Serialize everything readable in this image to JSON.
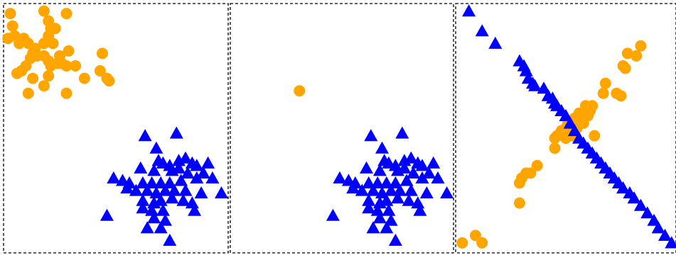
{
  "colors": {
    "circle": "#FFA500",
    "triangle": "#0000FF",
    "border": "#000000",
    "background": "#FFFFFF"
  },
  "chart_data": [
    {
      "type": "scatter",
      "panel": 1,
      "xlim": [
        0,
        1
      ],
      "ylim": [
        0,
        1
      ],
      "series": [
        {
          "marker": "circle",
          "color": "#FFA500",
          "points": [
            [
              0.03,
              0.96
            ],
            [
              0.18,
              0.97
            ],
            [
              0.28,
              0.96
            ],
            [
              0.2,
              0.93
            ],
            [
              0.04,
              0.91
            ],
            [
              0.05,
              0.87
            ],
            [
              0.09,
              0.86
            ],
            [
              0.02,
              0.86
            ],
            [
              0.07,
              0.84
            ],
            [
              0.11,
              0.84
            ],
            [
              0.21,
              0.9
            ],
            [
              0.23,
              0.9
            ],
            [
              0.2,
              0.87
            ],
            [
              0.18,
              0.84
            ],
            [
              0.22,
              0.84
            ],
            [
              0.14,
              0.82
            ],
            [
              0.13,
              0.8
            ],
            [
              0.15,
              0.79
            ],
            [
              0.18,
              0.79
            ],
            [
              0.12,
              0.78
            ],
            [
              0.25,
              0.79
            ],
            [
              0.29,
              0.81
            ],
            [
              0.44,
              0.8
            ],
            [
              0.2,
              0.77
            ],
            [
              0.21,
              0.75
            ],
            [
              0.24,
              0.76
            ],
            [
              0.26,
              0.76
            ],
            [
              0.28,
              0.75
            ],
            [
              0.32,
              0.75
            ],
            [
              0.1,
              0.75
            ],
            [
              0.08,
              0.73
            ],
            [
              0.06,
              0.72
            ],
            [
              0.13,
              0.7
            ],
            [
              0.2,
              0.71
            ],
            [
              0.36,
              0.7
            ],
            [
              0.43,
              0.73
            ],
            [
              0.46,
              0.7
            ],
            [
              0.47,
              0.69
            ],
            [
              0.18,
              0.67
            ],
            [
              0.11,
              0.64
            ],
            [
              0.28,
              0.64
            ]
          ]
        },
        {
          "marker": "triangle",
          "color": "#0000FF",
          "points": [
            [
              0.63,
              0.47
            ],
            [
              0.77,
              0.48
            ],
            [
              0.68,
              0.42
            ],
            [
              0.81,
              0.38
            ],
            [
              0.78,
              0.37
            ],
            [
              0.84,
              0.36
            ],
            [
              0.91,
              0.36
            ],
            [
              0.86,
              0.35
            ],
            [
              0.69,
              0.37
            ],
            [
              0.71,
              0.36
            ],
            [
              0.74,
              0.35
            ],
            [
              0.78,
              0.34
            ],
            [
              0.61,
              0.34
            ],
            [
              0.67,
              0.33
            ],
            [
              0.75,
              0.33
            ],
            [
              0.82,
              0.32
            ],
            [
              0.89,
              0.32
            ],
            [
              0.49,
              0.3
            ],
            [
              0.53,
              0.29
            ],
            [
              0.56,
              0.28
            ],
            [
              0.62,
              0.28
            ],
            [
              0.66,
              0.28
            ],
            [
              0.7,
              0.28
            ],
            [
              0.74,
              0.28
            ],
            [
              0.79,
              0.29
            ],
            [
              0.86,
              0.3
            ],
            [
              0.93,
              0.3
            ],
            [
              0.55,
              0.26
            ],
            [
              0.59,
              0.25
            ],
            [
              0.64,
              0.25
            ],
            [
              0.68,
              0.24
            ],
            [
              0.72,
              0.25
            ],
            [
              0.76,
              0.25
            ],
            [
              0.81,
              0.25
            ],
            [
              0.88,
              0.24
            ],
            [
              0.97,
              0.24
            ],
            [
              0.62,
              0.21
            ],
            [
              0.67,
              0.2
            ],
            [
              0.7,
              0.21
            ],
            [
              0.75,
              0.22
            ],
            [
              0.8,
              0.21
            ],
            [
              0.84,
              0.2
            ],
            [
              0.62,
              0.18
            ],
            [
              0.66,
              0.17
            ],
            [
              0.71,
              0.17
            ],
            [
              0.85,
              0.17
            ],
            [
              0.46,
              0.15
            ],
            [
              0.67,
              0.14
            ],
            [
              0.72,
              0.13
            ],
            [
              0.64,
              0.1
            ],
            [
              0.7,
              0.1
            ],
            [
              0.74,
              0.05
            ]
          ]
        }
      ]
    },
    {
      "type": "scatter",
      "panel": 2,
      "xlim": [
        0,
        1
      ],
      "ylim": [
        0,
        1
      ],
      "series": [
        {
          "marker": "circle",
          "color": "#FFA500",
          "points": [
            [
              0.31,
              0.65
            ]
          ]
        },
        {
          "marker": "triangle",
          "color": "#0000FF",
          "points": [
            [
              0.63,
              0.47
            ],
            [
              0.77,
              0.48
            ],
            [
              0.68,
              0.42
            ],
            [
              0.81,
              0.38
            ],
            [
              0.78,
              0.37
            ],
            [
              0.84,
              0.36
            ],
            [
              0.91,
              0.36
            ],
            [
              0.86,
              0.35
            ],
            [
              0.69,
              0.37
            ],
            [
              0.71,
              0.36
            ],
            [
              0.74,
              0.35
            ],
            [
              0.78,
              0.34
            ],
            [
              0.61,
              0.34
            ],
            [
              0.67,
              0.33
            ],
            [
              0.75,
              0.33
            ],
            [
              0.82,
              0.32
            ],
            [
              0.89,
              0.32
            ],
            [
              0.49,
              0.3
            ],
            [
              0.53,
              0.29
            ],
            [
              0.56,
              0.28
            ],
            [
              0.62,
              0.28
            ],
            [
              0.66,
              0.28
            ],
            [
              0.7,
              0.28
            ],
            [
              0.74,
              0.28
            ],
            [
              0.79,
              0.29
            ],
            [
              0.86,
              0.3
            ],
            [
              0.93,
              0.3
            ],
            [
              0.55,
              0.26
            ],
            [
              0.59,
              0.25
            ],
            [
              0.64,
              0.25
            ],
            [
              0.68,
              0.24
            ],
            [
              0.72,
              0.25
            ],
            [
              0.76,
              0.25
            ],
            [
              0.81,
              0.25
            ],
            [
              0.88,
              0.24
            ],
            [
              0.97,
              0.24
            ],
            [
              0.62,
              0.21
            ],
            [
              0.67,
              0.2
            ],
            [
              0.7,
              0.21
            ],
            [
              0.75,
              0.22
            ],
            [
              0.8,
              0.21
            ],
            [
              0.84,
              0.2
            ],
            [
              0.62,
              0.18
            ],
            [
              0.66,
              0.17
            ],
            [
              0.71,
              0.17
            ],
            [
              0.85,
              0.17
            ],
            [
              0.46,
              0.15
            ],
            [
              0.67,
              0.14
            ],
            [
              0.72,
              0.13
            ],
            [
              0.64,
              0.1
            ],
            [
              0.7,
              0.1
            ],
            [
              0.74,
              0.05
            ]
          ]
        }
      ]
    },
    {
      "type": "scatter",
      "panel": 3,
      "xlim": [
        0,
        1
      ],
      "ylim": [
        0,
        1
      ],
      "series": [
        {
          "marker": "circle",
          "color": "#FFA500",
          "points": [
            [
              0.84,
              0.83
            ],
            [
              0.78,
              0.8
            ],
            [
              0.82,
              0.79
            ],
            [
              0.76,
              0.75
            ],
            [
              0.77,
              0.74
            ],
            [
              0.68,
              0.68
            ],
            [
              0.73,
              0.64
            ],
            [
              0.75,
              0.63
            ],
            [
              0.67,
              0.64
            ],
            [
              0.62,
              0.59
            ],
            [
              0.59,
              0.59
            ],
            [
              0.61,
              0.57
            ],
            [
              0.56,
              0.56
            ],
            [
              0.6,
              0.55
            ],
            [
              0.54,
              0.54
            ],
            [
              0.57,
              0.54
            ],
            [
              0.51,
              0.52
            ],
            [
              0.53,
              0.51
            ],
            [
              0.58,
              0.52
            ],
            [
              0.5,
              0.5
            ],
            [
              0.52,
              0.49
            ],
            [
              0.55,
              0.5
            ],
            [
              0.48,
              0.49
            ],
            [
              0.46,
              0.47
            ],
            [
              0.53,
              0.47
            ],
            [
              0.63,
              0.47
            ],
            [
              0.45,
              0.46
            ],
            [
              0.5,
              0.46
            ],
            [
              0.45,
              0.42
            ],
            [
              0.37,
              0.35
            ],
            [
              0.32,
              0.32
            ],
            [
              0.34,
              0.32
            ],
            [
              0.3,
              0.3
            ],
            [
              0.29,
              0.28
            ],
            [
              0.29,
              0.2
            ],
            [
              0.09,
              0.07
            ],
            [
              0.03,
              0.04
            ],
            [
              0.12,
              0.04
            ]
          ]
        },
        {
          "marker": "triangle",
          "color": "#0000FF",
          "points": [
            [
              0.06,
              0.97
            ],
            [
              0.12,
              0.89
            ],
            [
              0.18,
              0.84
            ],
            [
              0.29,
              0.77
            ],
            [
              0.31,
              0.75
            ],
            [
              0.32,
              0.73
            ],
            [
              0.33,
              0.7
            ],
            [
              0.35,
              0.68
            ],
            [
              0.36,
              0.67
            ],
            [
              0.4,
              0.66
            ],
            [
              0.42,
              0.63
            ],
            [
              0.44,
              0.62
            ],
            [
              0.45,
              0.6
            ],
            [
              0.46,
              0.59
            ],
            [
              0.48,
              0.57
            ],
            [
              0.5,
              0.55
            ],
            [
              0.52,
              0.52
            ],
            [
              0.54,
              0.49
            ],
            [
              0.56,
              0.46
            ],
            [
              0.58,
              0.44
            ],
            [
              0.6,
              0.42
            ],
            [
              0.62,
              0.4
            ],
            [
              0.64,
              0.38
            ],
            [
              0.66,
              0.36
            ],
            [
              0.68,
              0.34
            ],
            [
              0.7,
              0.32
            ],
            [
              0.72,
              0.3
            ],
            [
              0.74,
              0.28
            ],
            [
              0.76,
              0.26
            ],
            [
              0.79,
              0.24
            ],
            [
              0.81,
              0.22
            ],
            [
              0.84,
              0.19
            ],
            [
              0.87,
              0.16
            ],
            [
              0.9,
              0.13
            ],
            [
              0.92,
              0.1
            ],
            [
              0.95,
              0.07
            ],
            [
              0.98,
              0.04
            ]
          ]
        }
      ]
    }
  ]
}
